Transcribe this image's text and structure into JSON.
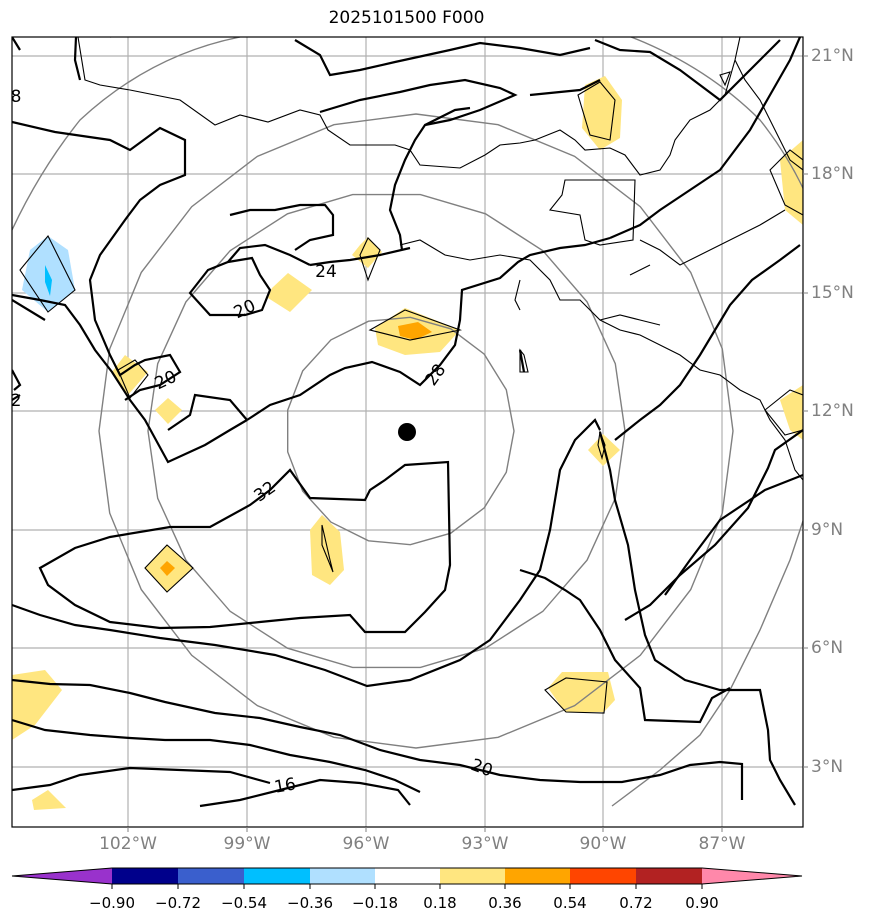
{
  "title": "2025101500 F000",
  "map": {
    "latitude_ticks": [
      "21°N",
      "18°N",
      "15°N",
      "12°N",
      "9°N",
      "6°N",
      "3°N"
    ],
    "longitude_ticks": [
      "102°W",
      "99°W",
      "96°W",
      "93°W",
      "90°W",
      "87°W"
    ],
    "contour_labels": [
      "24",
      "20",
      "20",
      "28",
      "32",
      "20",
      "16",
      "8",
      "2"
    ],
    "storm_center": "black-dot",
    "colors": {
      "contour": "#000000",
      "coastline": "#000000",
      "range_rings": "#808080",
      "gridlines": "#b0b0b0",
      "positive_low": "#ffe680",
      "positive_mid": "#ffa500",
      "negative_low": "#b0e0ff",
      "negative_mid": "#00bfff"
    }
  },
  "colorbar": {
    "labels": [
      "−0.90",
      "−0.72",
      "−0.54",
      "−0.36",
      "−0.18",
      "0.18",
      "0.36",
      "0.54",
      "0.72",
      "0.90"
    ],
    "colors": [
      "#9932cc",
      "#00008b",
      "#3a5fcd",
      "#00bfff",
      "#b0e0ff",
      "#ffffff",
      "#ffe680",
      "#ffa500",
      "#ff4500",
      "#b22222",
      "#ff88aa"
    ]
  }
}
